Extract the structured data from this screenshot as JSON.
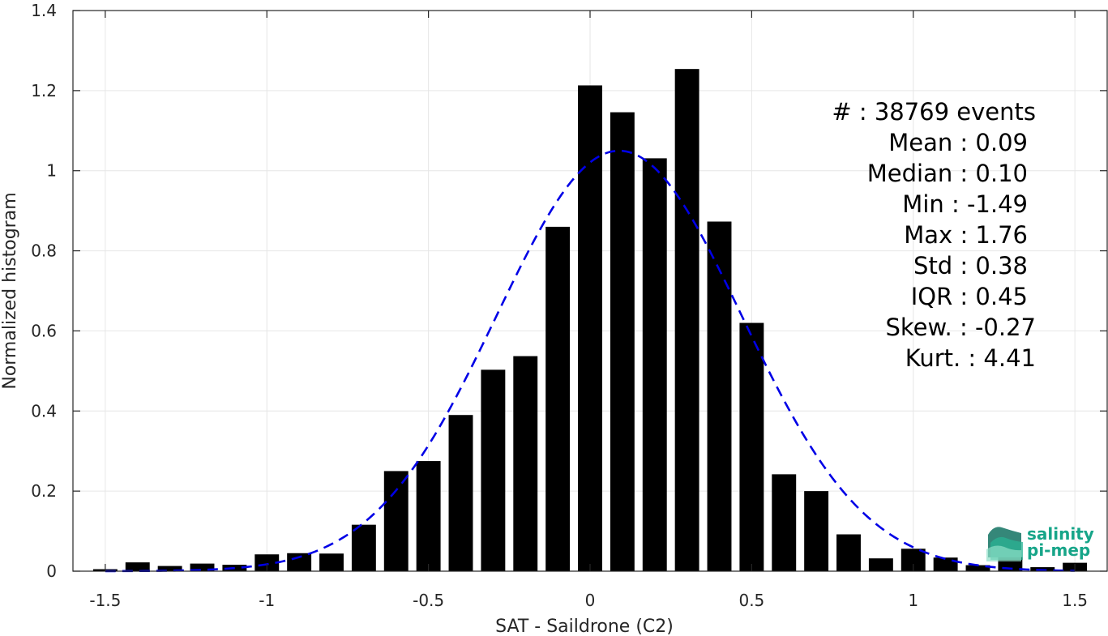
{
  "chart_data": {
    "type": "bar",
    "xlabel": "SAT - Saildrone (C2)",
    "ylabel": "Normalized histogram",
    "xlim": [
      -1.6,
      1.6
    ],
    "ylim": [
      0,
      1.4
    ],
    "x_ticks": [
      -1.5,
      -1,
      -0.5,
      0,
      0.5,
      1,
      1.5
    ],
    "x_tick_labels": [
      "-1.5",
      "-1",
      "-0.5",
      "0",
      "0.5",
      "1",
      "1.5"
    ],
    "y_ticks": [
      0,
      0.2,
      0.4,
      0.6,
      0.8,
      1,
      1.2,
      1.4
    ],
    "y_tick_labels": [
      "0",
      "0.2",
      "0.4",
      "0.6",
      "0.8",
      "1",
      "1.2",
      "1.4"
    ],
    "grid": true,
    "bin_width": 0.1,
    "bar_color": "#000000",
    "bins": [
      {
        "x": -1.5,
        "value": 0.005
      },
      {
        "x": -1.4,
        "value": 0.022
      },
      {
        "x": -1.3,
        "value": 0.013
      },
      {
        "x": -1.2,
        "value": 0.019
      },
      {
        "x": -1.1,
        "value": 0.016
      },
      {
        "x": -1.0,
        "value": 0.042
      },
      {
        "x": -0.9,
        "value": 0.045
      },
      {
        "x": -0.8,
        "value": 0.044
      },
      {
        "x": -0.7,
        "value": 0.116
      },
      {
        "x": -0.6,
        "value": 0.25
      },
      {
        "x": -0.5,
        "value": 0.275
      },
      {
        "x": -0.4,
        "value": 0.39
      },
      {
        "x": -0.3,
        "value": 0.503
      },
      {
        "x": -0.2,
        "value": 0.537
      },
      {
        "x": -0.1,
        "value": 0.86
      },
      {
        "x": 0.0,
        "value": 1.213
      },
      {
        "x": 0.1,
        "value": 1.146
      },
      {
        "x": 0.2,
        "value": 1.031
      },
      {
        "x": 0.3,
        "value": 1.254
      },
      {
        "x": 0.4,
        "value": 0.873
      },
      {
        "x": 0.5,
        "value": 0.62
      },
      {
        "x": 0.6,
        "value": 0.242
      },
      {
        "x": 0.7,
        "value": 0.2
      },
      {
        "x": 0.8,
        "value": 0.092
      },
      {
        "x": 0.9,
        "value": 0.032
      },
      {
        "x": 1.0,
        "value": 0.056
      },
      {
        "x": 1.1,
        "value": 0.034
      },
      {
        "x": 1.2,
        "value": 0.015
      },
      {
        "x": 1.3,
        "value": 0.035
      },
      {
        "x": 1.4,
        "value": 0.01
      },
      {
        "x": 1.5,
        "value": 0.021
      }
    ],
    "fit_curve": {
      "style": "dashed",
      "color": "#0000e6",
      "mean": 0.09,
      "std": 0.38,
      "x_range": [
        -1.5,
        1.5
      ]
    },
    "annotations": [
      "#  : 38769 events",
      "Mean : 0.09",
      "Median : 0.10",
      "Min : -1.49",
      "Max : 1.76",
      "Std : 0.38",
      "IQR : 0.45",
      "Skew. : -0.27",
      "Kurt. : 4.41"
    ]
  },
  "logo": {
    "line1": "salinity",
    "line2": "pi-mep",
    "color": "#17a589"
  }
}
